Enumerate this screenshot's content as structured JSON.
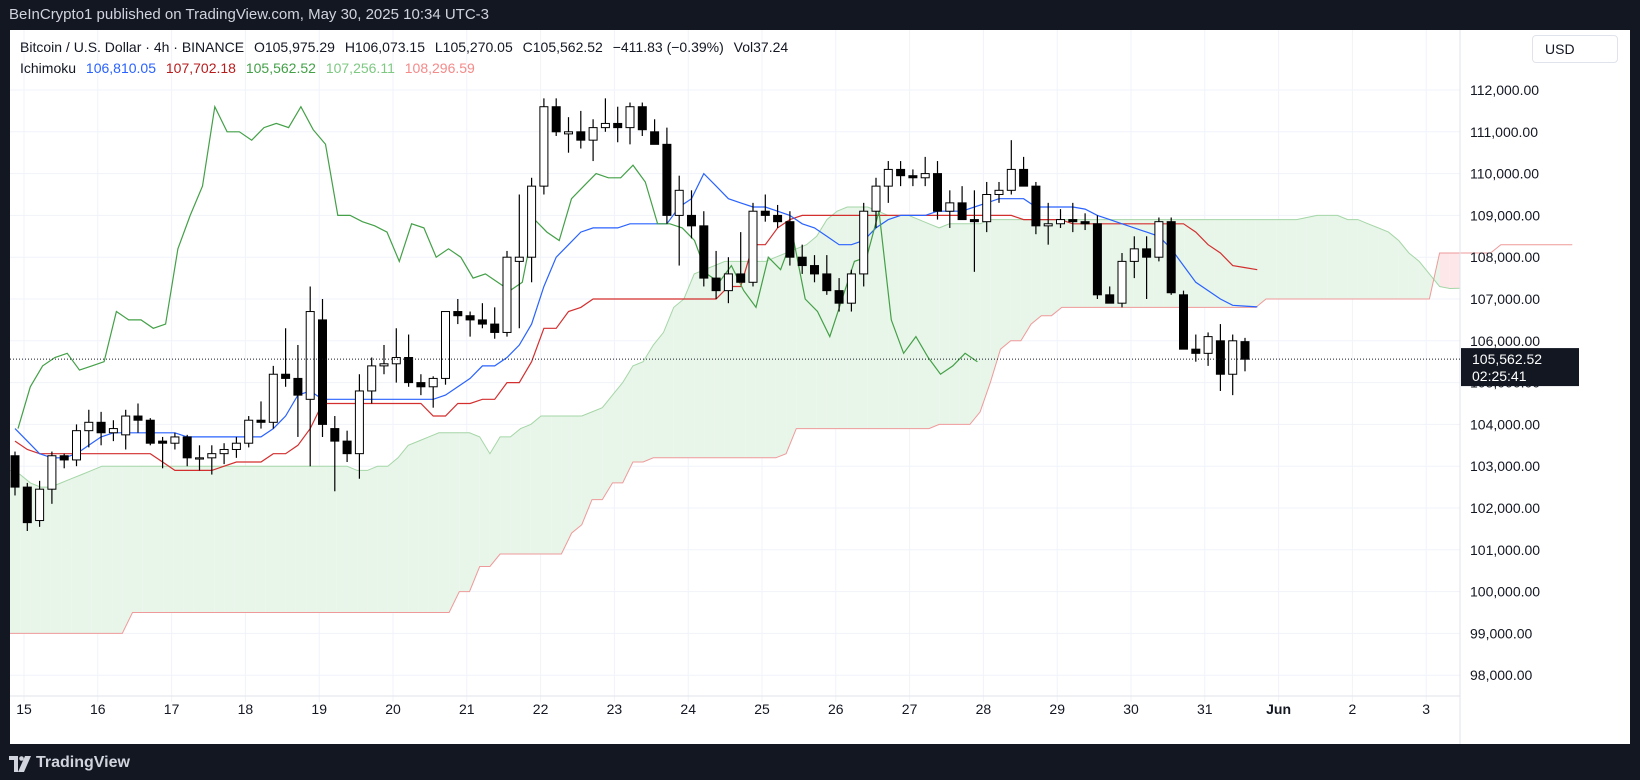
{
  "header": {
    "published_text": "BeInCrypto1 published on TradingView.com, May 30, 2025 10:34 UTC-3"
  },
  "footer": {
    "brand": "TradingView"
  },
  "legend": {
    "symbol": "Bitcoin / U.S. Dollar · 4h · BINANCE",
    "open": "O105,975.29",
    "high": "H106,073.15",
    "low": "L105,270.05",
    "close": "C105,562.52",
    "change": "−411.83 (−0.39%)",
    "volume": "Vol37.24",
    "indicator_name": "Ichimoku",
    "ichimoku_values": [
      "106,810.05",
      "107,702.18",
      "105,562.52",
      "107,256.11",
      "108,296.59"
    ],
    "ichimoku_colors": [
      "#2962ff",
      "#b71c1c",
      "#43a047",
      "#7ec882",
      "#f48a8a"
    ]
  },
  "currency": "USD",
  "price_label": {
    "price": "105,562.52",
    "countdown": "02:25:41"
  },
  "colors": {
    "conversion_line": "#2962ff",
    "base_line": "#d32f2f",
    "lagging_span": "#43a047",
    "cloud_bull": "#e8f5e9",
    "cloud_bear": "#fde7e9",
    "span_a": "#a5d6a7",
    "span_b": "#ef9a9a"
  },
  "chart_data": {
    "type": "candlestick",
    "indicator": "Ichimoku",
    "ylim": [
      97500,
      113000
    ],
    "y_ticks": [
      98000,
      99000,
      100000,
      101000,
      102000,
      103000,
      104000,
      105000,
      106000,
      107000,
      108000,
      109000,
      110000,
      111000,
      112000
    ],
    "y_tick_labels": [
      "98,000.00",
      "99,000.00",
      "100,000.00",
      "101,000.00",
      "102,000.00",
      "103,000.00",
      "104,000.00",
      "105,000.00",
      "106,000.00",
      "107,000.00",
      "108,000.00",
      "109,000.00",
      "110,000.00",
      "111,000.00",
      "112,000.00"
    ],
    "x_tick_labels": [
      "15",
      "16",
      "17",
      "18",
      "19",
      "20",
      "21",
      "22",
      "23",
      "24",
      "25",
      "26",
      "27",
      "28",
      "29",
      "30",
      "31",
      "Jun",
      "2",
      "3"
    ],
    "last_price": 105562.52,
    "candles": [
      [
        103250,
        103350,
        102300,
        102500
      ],
      [
        102500,
        102600,
        101450,
        101650
      ],
      [
        101700,
        102650,
        101550,
        102450
      ],
      [
        102450,
        103350,
        102100,
        103250
      ],
      [
        103250,
        103300,
        102950,
        103150
      ],
      [
        103150,
        104000,
        103000,
        103850
      ],
      [
        103850,
        104350,
        103450,
        104050
      ],
      [
        104050,
        104300,
        103500,
        103800
      ],
      [
        103800,
        104100,
        103600,
        103900
      ],
      [
        103750,
        104350,
        103400,
        104200
      ],
      [
        104200,
        104500,
        103800,
        104100
      ],
      [
        104100,
        104150,
        103500,
        103550
      ],
      [
        103600,
        103700,
        102950,
        103550
      ],
      [
        103550,
        103800,
        103400,
        103700
      ],
      [
        103700,
        103750,
        103000,
        103200
      ],
      [
        103200,
        103500,
        102900,
        103200
      ],
      [
        103200,
        103500,
        102800,
        103300
      ],
      [
        103300,
        103550,
        103050,
        103400
      ],
      [
        103400,
        103700,
        103200,
        103550
      ],
      [
        103550,
        104200,
        103450,
        104100
      ],
      [
        104100,
        104550,
        103900,
        104050
      ],
      [
        104050,
        105400,
        103900,
        105200
      ],
      [
        105200,
        106300,
        104900,
        105100
      ],
      [
        105100,
        105900,
        103700,
        104700
      ],
      [
        104600,
        107300,
        103000,
        106700
      ],
      [
        106500,
        107000,
        103700,
        104000
      ],
      [
        103900,
        104200,
        102400,
        103600
      ],
      [
        103600,
        103850,
        103100,
        103300
      ],
      [
        103300,
        105200,
        102700,
        104800
      ],
      [
        104800,
        105600,
        104500,
        105400
      ],
      [
        105400,
        105900,
        105200,
        105450
      ],
      [
        105450,
        106300,
        105000,
        105600
      ],
      [
        105600,
        106150,
        104900,
        105000
      ],
      [
        105000,
        105200,
        104700,
        104900
      ],
      [
        104900,
        105150,
        104400,
        105100
      ],
      [
        105100,
        106700,
        104950,
        106700
      ],
      [
        106700,
        107000,
        106400,
        106600
      ],
      [
        106600,
        106700,
        106100,
        106500
      ],
      [
        106500,
        106900,
        106300,
        106400
      ],
      [
        106400,
        106800,
        106050,
        106200
      ],
      [
        106200,
        108150,
        106100,
        108000
      ],
      [
        107900,
        109500,
        106300,
        108000
      ],
      [
        108000,
        109900,
        107400,
        109700
      ],
      [
        109700,
        111800,
        109500,
        111600
      ],
      [
        111600,
        111800,
        110900,
        111000
      ],
      [
        110950,
        111350,
        110500,
        111000
      ],
      [
        111000,
        111500,
        110600,
        110800
      ],
      [
        110800,
        111300,
        110300,
        111100
      ],
      [
        111100,
        111800,
        111000,
        111200
      ],
      [
        111200,
        111600,
        110750,
        111100
      ],
      [
        111100,
        111700,
        110700,
        111600
      ],
      [
        111600,
        111700,
        110900,
        111050
      ],
      [
        111000,
        111300,
        110700,
        110700
      ],
      [
        110700,
        111100,
        108800,
        109000
      ],
      [
        109000,
        109950,
        107800,
        109600
      ],
      [
        109000,
        109600,
        108450,
        108750
      ],
      [
        108750,
        109100,
        107300,
        107500
      ],
      [
        107500,
        108150,
        107000,
        107200
      ],
      [
        107200,
        108000,
        106900,
        107600
      ],
      [
        107600,
        108600,
        107400,
        107400
      ],
      [
        107400,
        109300,
        107300,
        109100
      ],
      [
        109100,
        109500,
        108850,
        109000
      ],
      [
        109000,
        109250,
        108700,
        108850
      ],
      [
        108850,
        109100,
        107800,
        108000
      ],
      [
        108000,
        108300,
        107600,
        107800
      ],
      [
        107800,
        108050,
        107400,
        107600
      ],
      [
        107600,
        108050,
        107100,
        107200
      ],
      [
        107200,
        107500,
        106700,
        106900
      ],
      [
        106900,
        107700,
        106700,
        107600
      ],
      [
        107600,
        109300,
        107300,
        109100
      ],
      [
        109100,
        109900,
        108700,
        109700
      ],
      [
        109700,
        110300,
        109300,
        110100
      ],
      [
        110100,
        110300,
        109700,
        109950
      ],
      [
        109950,
        110100,
        109700,
        109900
      ],
      [
        109900,
        110400,
        109700,
        110000
      ],
      [
        110000,
        110300,
        108900,
        109100
      ],
      [
        109100,
        109600,
        108700,
        109300
      ],
      [
        109300,
        109700,
        108900,
        108900
      ],
      [
        108900,
        109600,
        107650,
        108850
      ],
      [
        108850,
        109800,
        108600,
        109500
      ],
      [
        109500,
        109800,
        109300,
        109600
      ],
      [
        109600,
        110800,
        109500,
        110100
      ],
      [
        110100,
        110400,
        109700,
        109700
      ],
      [
        109700,
        109800,
        108550,
        108750
      ],
      [
        108750,
        109300,
        108300,
        108800
      ],
      [
        108800,
        109150,
        108700,
        108900
      ],
      [
        108900,
        109300,
        108600,
        108850
      ],
      [
        108850,
        109050,
        108650,
        108800
      ],
      [
        108800,
        109000,
        107000,
        107100
      ],
      [
        107100,
        107300,
        106900,
        106900
      ],
      [
        106900,
        108100,
        106800,
        107900
      ],
      [
        107900,
        108500,
        107500,
        108200
      ],
      [
        108200,
        108500,
        107000,
        108000
      ],
      [
        108000,
        108950,
        107900,
        108850
      ],
      [
        108850,
        108950,
        107100,
        107150
      ],
      [
        107100,
        107200,
        105800,
        105800
      ],
      [
        105800,
        106150,
        105500,
        105700
      ],
      [
        105700,
        106200,
        105400,
        106100
      ],
      [
        106000,
        106400,
        104800,
        105200
      ],
      [
        105200,
        106150,
        104700,
        106000
      ],
      [
        105980,
        106070,
        105270,
        105560
      ]
    ],
    "conversion_line": [
      103900,
      103600,
      103300,
      103200,
      103200,
      103300,
      103500,
      103700,
      103800,
      103800,
      103800,
      103800,
      103800,
      103800,
      103700,
      103700,
      103700,
      103700,
      103700,
      103700,
      103700,
      103900,
      104200,
      104700,
      104800,
      104600,
      104600,
      104600,
      104600,
      104600,
      104600,
      104600,
      104600,
      104600,
      104600,
      104700,
      104900,
      105100,
      105400,
      105400,
      105600,
      105900,
      106400,
      107300,
      108000,
      108300,
      108600,
      108700,
      108700,
      108700,
      108800,
      108800,
      108800,
      108800,
      109200,
      109400,
      110000,
      109700,
      109400,
      109300,
      109200,
      109200,
      109100,
      109000,
      108800,
      108700,
      108500,
      108300,
      108300,
      108400,
      108700,
      108900,
      109000,
      109000,
      109000,
      109100,
      109100,
      109100,
      109200,
      109300,
      109400,
      109400,
      109400,
      109200,
      109200,
      109200,
      109200,
      109150,
      109000,
      108900,
      108800,
      108700,
      108600,
      108500,
      108200,
      107800,
      107400,
      107200,
      107000,
      106850,
      106830,
      106810
    ],
    "base_line": [
      103600,
      103400,
      103300,
      103300,
      103300,
      103300,
      103300,
      103300,
      103300,
      103300,
      103300,
      103300,
      103100,
      102900,
      102900,
      102900,
      102900,
      103000,
      103100,
      103100,
      103100,
      103300,
      103300,
      103500,
      103900,
      104500,
      104500,
      104500,
      104500,
      104500,
      104500,
      104500,
      104500,
      104500,
      104200,
      104200,
      104500,
      104500,
      104600,
      104600,
      105000,
      105000,
      105500,
      106300,
      106300,
      106700,
      106800,
      107000,
      107000,
      107000,
      107000,
      107000,
      107000,
      107000,
      107000,
      107000,
      107000,
      107000,
      107300,
      107300,
      108300,
      108300,
      108700,
      108900,
      109000,
      109000,
      109000,
      109000,
      109000,
      109000,
      109000,
      109000,
      109000,
      109000,
      109000,
      109000,
      109000,
      109000,
      109000,
      109000,
      109000,
      109000,
      108900,
      108900,
      108900,
      108900,
      108800,
      108800,
      108800,
      108800,
      108800,
      108800,
      108800,
      108800,
      108800,
      108800,
      108600,
      108300,
      108100,
      107800,
      107750,
      107700
    ],
    "senkou_span_a": [
      102900,
      102800,
      102600,
      102500,
      102500,
      102600,
      102700,
      102800,
      102900,
      103000,
      103000,
      103000,
      103000,
      103000,
      103000,
      103000,
      103000,
      103000,
      103000,
      103000,
      103000,
      103000,
      103000,
      103000,
      103000,
      103000,
      103000,
      103000,
      103000,
      103000,
      103000,
      103000,
      103000,
      103000,
      102900,
      102900,
      103000,
      103000,
      103200,
      103500,
      103600,
      103700,
      103800,
      103800,
      103800,
      103800,
      103700,
      103300,
      103700,
      103700,
      103900,
      104000,
      104200,
      104200,
      104200,
      104200,
      104200,
      104300,
      104400,
      104700,
      105000,
      105400,
      105500,
      105900,
      106200,
      106800,
      107000,
      107600,
      107700,
      107800,
      107900,
      107900,
      107900,
      107900,
      107900,
      108000,
      108100,
      108200,
      108300,
      108500,
      108900,
      109100,
      109200,
      109200,
      109200,
      109100,
      109000,
      109000,
      109000,
      108900,
      108800,
      108700,
      108800,
      108800,
      108800,
      108800,
      108900,
      108900,
      108900,
      108900,
      108900,
      108900,
      108900,
      108900,
      108900,
      108900,
      108900,
      108900,
      108900,
      108900,
      108900,
      108900,
      108900,
      108900,
      108900,
      108900,
      108900,
      108900,
      108900,
      108900,
      108900,
      108900,
      108900,
      108900,
      108900,
      108900,
      108900,
      108950,
      109000,
      109000,
      109000,
      108900,
      108900,
      108800,
      108700,
      108600,
      108400,
      108100,
      107900,
      107600,
      107300,
      107250,
      107256
    ],
    "senkou_span_b": [
      99000,
      99000,
      99000,
      99000,
      99000,
      99000,
      99000,
      99000,
      99000,
      99000,
      99000,
      99000,
      99500,
      99500,
      99500,
      99500,
      99500,
      99500,
      99500,
      99500,
      99500,
      99500,
      99500,
      99500,
      99500,
      99500,
      99500,
      99500,
      99500,
      99500,
      99500,
      99500,
      99500,
      99500,
      99500,
      99500,
      99500,
      99500,
      99500,
      99500,
      99500,
      99500,
      99500,
      99500,
      100000,
      100000,
      100600,
      100600,
      100900,
      100900,
      100900,
      100900,
      100900,
      100900,
      100900,
      101400,
      101600,
      102200,
      102200,
      102600,
      102600,
      103100,
      103100,
      103200,
      103200,
      103200,
      103200,
      103200,
      103200,
      103200,
      103200,
      103200,
      103200,
      103200,
      103200,
      103200,
      103300,
      103900,
      103900,
      103900,
      103900,
      103900,
      103900,
      103900,
      103900,
      103900,
      103900,
      103900,
      103900,
      103900,
      103900,
      104000,
      104000,
      104000,
      104000,
      104300,
      105000,
      105800,
      106000,
      106000,
      106400,
      106600,
      106600,
      106800,
      106800,
      106800,
      106800,
      106800,
      106800,
      106800,
      106800,
      106800,
      106800,
      106800,
      106800,
      106800,
      106800,
      106800,
      106800,
      106800,
      106800,
      106800,
      106800,
      107000,
      107000,
      107000,
      107000,
      107000,
      107000,
      107000,
      107000,
      107000,
      107000,
      107000,
      107000,
      107000,
      107000,
      107000,
      107000,
      107000,
      108100,
      108100,
      108100,
      108100,
      108100,
      108100,
      108300,
      108300,
      108300,
      108300,
      108300,
      108300,
      108300,
      108297
    ],
    "lagging_span": [
      103900,
      104900,
      105400,
      105600,
      105700,
      105300,
      105400,
      105500,
      106700,
      106500,
      106500,
      106300,
      106400,
      108200,
      109000,
      109700,
      111600,
      111000,
      111000,
      110800,
      111100,
      111200,
      111100,
      111600,
      111050,
      110700,
      109000,
      109000,
      108850,
      108750,
      108600,
      107900,
      108800,
      108700,
      108000,
      108200,
      108000,
      107500,
      107600,
      107400,
      107200,
      107400,
      108900,
      108600,
      108400,
      109400,
      109700,
      110000,
      109900,
      109900,
      110200,
      109800,
      108800,
      108800,
      108700,
      108400,
      107600,
      107400,
      107800,
      107200,
      106800,
      108000,
      107700,
      108500,
      107000,
      106700,
      106100,
      107000,
      107900,
      108000,
      109100,
      106500,
      105700,
      106100,
      105600,
      105200,
      105400,
      105700,
      105500
    ]
  }
}
